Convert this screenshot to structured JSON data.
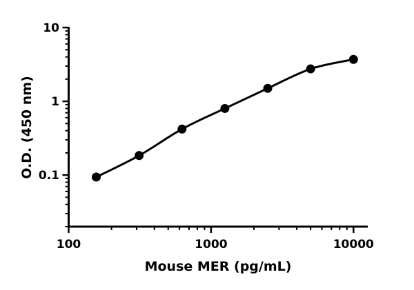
{
  "chart_data": {
    "type": "scatter",
    "title": "",
    "xlabel": "Mouse MER (pg/mL)",
    "ylabel": "O.D. (450 nm)",
    "xscale": "log",
    "yscale": "log",
    "xlim": [
      100,
      12600
    ],
    "ylim": [
      0.02,
      10
    ],
    "xticks": [
      100,
      1000,
      10000
    ],
    "xtick_labels": [
      "100",
      "1000",
      "10000"
    ],
    "yticks": [
      0.1,
      1,
      10
    ],
    "ytick_labels": [
      "0.1",
      "1",
      "10"
    ],
    "grid": false,
    "legend": "none",
    "series": [
      {
        "x": [
          156.25,
          312.5,
          625,
          1250,
          2500,
          5000,
          10000
        ],
        "y": [
          0.094,
          0.184,
          0.42,
          0.8,
          1.5,
          2.75,
          3.7
        ],
        "marker": "circle",
        "fit_line": true,
        "color": "#000000"
      }
    ]
  }
}
